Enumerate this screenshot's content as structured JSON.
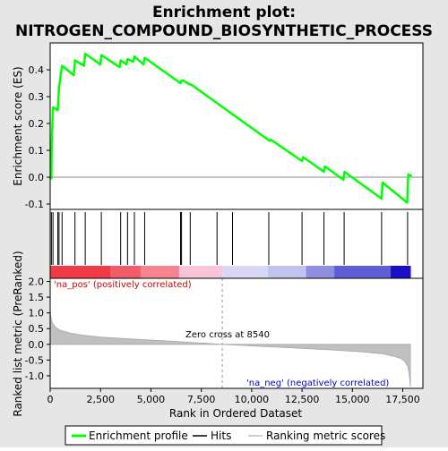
{
  "chart_data": {
    "type": "line",
    "title_line1": "Enrichment plot:",
    "title_line2": "NITROGEN_COMPOUND_BIOSYNTHETIC_PROCESS",
    "xlabel": "Rank in Ordered Dataset",
    "ylabel_top": "Enrichment score (ES)",
    "ylabel_bottom": "Ranked list metric (PreRanked)",
    "xlim": [
      0,
      18500
    ],
    "x_ticks": [
      0,
      2500,
      5000,
      7500,
      10000,
      12500,
      15000,
      17500
    ],
    "x_tick_labels": [
      "0",
      "2,500",
      "5,000",
      "7,500",
      "10,000",
      "12,500",
      "15,000",
      "17,500"
    ],
    "es_ylim": [
      -0.12,
      0.5
    ],
    "es_ticks": [
      -0.1,
      0.0,
      0.1,
      0.2,
      0.3,
      0.4
    ],
    "es_tick_labels": [
      "-0.1",
      "0.0",
      "0.1",
      "0.2",
      "0.3",
      "0.4"
    ],
    "metric_ylim": [
      -1.4,
      2.1
    ],
    "metric_ticks": [
      -1.0,
      -0.5,
      0.0,
      0.5,
      1.0,
      1.5,
      2.0
    ],
    "metric_tick_labels": [
      "-1.0",
      "-0.5",
      "0.0",
      "0.5",
      "1.0",
      "1.5",
      "2.0"
    ],
    "enrichment_profile": {
      "x": [
        0,
        60,
        80,
        140,
        380,
        440,
        590,
        1170,
        1230,
        1680,
        1740,
        2490,
        2540,
        3440,
        3500,
        3790,
        3840,
        4120,
        4180,
        4630,
        4690,
        6470,
        6520,
        6600,
        6950,
        7000,
        10900,
        10950,
        12500,
        12550,
        13590,
        13640,
        14560,
        14610,
        16450,
        16500,
        17720,
        17770,
        17950
      ],
      "y": [
        0.0,
        -0.005,
        0.13,
        0.26,
        0.25,
        0.335,
        0.415,
        0.38,
        0.435,
        0.415,
        0.46,
        0.42,
        0.455,
        0.41,
        0.435,
        0.42,
        0.44,
        0.43,
        0.45,
        0.42,
        0.445,
        0.35,
        0.36,
        0.36,
        0.345,
        0.345,
        0.135,
        0.14,
        0.06,
        0.075,
        0.02,
        0.04,
        -0.01,
        0.02,
        -0.08,
        -0.02,
        -0.095,
        0.01,
        0.005
      ]
    },
    "hits": [
      60,
      140,
      380,
      440,
      590,
      1230,
      1740,
      2540,
      3500,
      3840,
      4180,
      4690,
      6470,
      6520,
      6950,
      8280,
      9050,
      10850,
      12500,
      13590,
      14590,
      16450,
      17740
    ],
    "metric_profile": {
      "x": [
        0,
        30,
        100,
        250,
        500,
        1000,
        1500,
        2500,
        4000,
        6000,
        8540,
        10000,
        12000,
        14000,
        15500,
        16500,
        17000,
        17400,
        17600,
        17750,
        17830,
        17880
      ],
      "y": [
        1.1,
        0.9,
        0.7,
        0.55,
        0.45,
        0.36,
        0.3,
        0.23,
        0.17,
        0.1,
        0.0,
        -0.05,
        -0.11,
        -0.18,
        -0.24,
        -0.3,
        -0.37,
        -0.45,
        -0.55,
        -0.7,
        -1.0,
        -1.35
      ]
    },
    "zero_cross_x": 8540,
    "zero_cross_label": "Zero cross at 8540",
    "pos_label": "'na_pos' (positively correlated)",
    "neg_label": "'na_neg' (negatively correlated)",
    "legend": [
      {
        "label": "Enrichment profile",
        "color": "#00ff00",
        "kind": "thick-line"
      },
      {
        "label": "Hits",
        "color": "#000000",
        "kind": "thin-line"
      },
      {
        "label": "Ranking metric scores",
        "color": "#c0c0c0",
        "kind": "thin-line"
      }
    ],
    "colors": {
      "profile": "#00ff00",
      "metric_fill": "#c0c0c0",
      "pos_text": "#cc0000",
      "neg_text": "#0000cc",
      "header_bg": "#e6e6e6"
    },
    "heatbar_segments": [
      {
        "x0": 0,
        "x1": 2980,
        "color": "#f03a45"
      },
      {
        "x0": 2980,
        "x1": 4500,
        "color": "#f35b6a"
      },
      {
        "x0": 4500,
        "x1": 6400,
        "color": "#f6838d"
      },
      {
        "x0": 6400,
        "x1": 8540,
        "color": "#f9c3d8"
      },
      {
        "x0": 8540,
        "x1": 10800,
        "color": "#d8d8f6"
      },
      {
        "x0": 10800,
        "x1": 12700,
        "color": "#c2c2ef"
      },
      {
        "x0": 12700,
        "x1": 14100,
        "color": "#8f8fe2"
      },
      {
        "x0": 14100,
        "x1": 16900,
        "color": "#5e5ed8"
      },
      {
        "x0": 16900,
        "x1": 17900,
        "color": "#1d0ec6"
      }
    ]
  }
}
